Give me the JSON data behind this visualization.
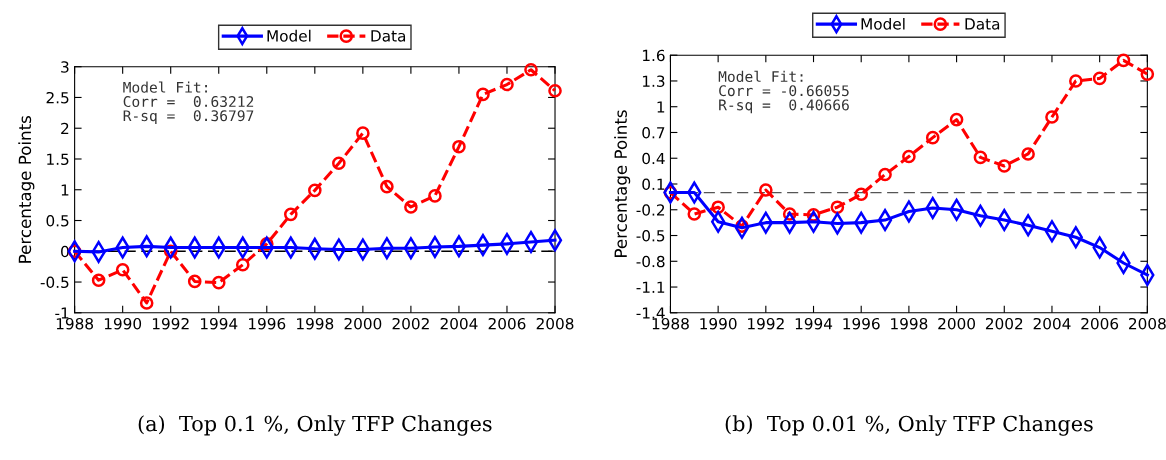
{
  "chart_data": [
    {
      "type": "line",
      "title": "(a)  Top 0.1 %, Only TFP Changes",
      "ylabel": "Percentage Points",
      "annotations": [
        "Model Fit:",
        "Corr =  0.63212",
        "R-sq =  0.36797"
      ],
      "x": [
        1988,
        1989,
        1990,
        1991,
        1992,
        1993,
        1994,
        1995,
        1996,
        1997,
        1998,
        1999,
        2000,
        2001,
        2002,
        2003,
        2004,
        2005,
        2006,
        2007,
        2008
      ],
      "series": [
        {
          "name": "Model",
          "color": "#0000ff",
          "marker": "diamond",
          "line_style": "solid",
          "values": [
            0,
            -0.01,
            0.06,
            0.08,
            0.06,
            0.06,
            0.06,
            0.06,
            0.06,
            0.06,
            0.04,
            0.03,
            0.03,
            0.05,
            0.05,
            0.07,
            0.08,
            0.1,
            0.12,
            0.15,
            0.18
          ]
        },
        {
          "name": "Data",
          "color": "#ff0000",
          "marker": "circle",
          "line_style": "dashed",
          "values": [
            0,
            -0.47,
            -0.3,
            -0.84,
            0,
            -0.49,
            -0.51,
            -0.22,
            0.12,
            0.6,
            0.99,
            1.43,
            1.92,
            1.05,
            0.72,
            0.9,
            1.7,
            2.55,
            2.71,
            2.95,
            2.61
          ]
        }
      ],
      "xlim": [
        1988,
        2008
      ],
      "ylim": [
        -1,
        3
      ],
      "xticks": [
        1988,
        1990,
        1992,
        1994,
        1996,
        1998,
        2000,
        2002,
        2004,
        2006,
        2008
      ],
      "yticks": [
        -1,
        -0.5,
        0,
        0.5,
        1,
        1.5,
        2,
        2.5,
        3
      ],
      "ref_lines": [
        {
          "axis": "y",
          "value": 0,
          "color": "#000000",
          "line_style": "dashed"
        }
      ],
      "grid": false,
      "legend": "top"
    },
    {
      "type": "line",
      "title": "(b)  Top 0.01 %, Only TFP Changes",
      "ylabel": "Percentage Points",
      "annotations": [
        "Model Fit:",
        "Corr = -0.66055",
        "R-sq =  0.40666"
      ],
      "x": [
        1988,
        1989,
        1990,
        1991,
        1992,
        1993,
        1994,
        1995,
        1996,
        1997,
        1998,
        1999,
        2000,
        2001,
        2002,
        2003,
        2004,
        2005,
        2006,
        2007,
        2008
      ],
      "series": [
        {
          "name": "Model",
          "color": "#0000ff",
          "marker": "diamond",
          "line_style": "solid",
          "values": [
            0,
            0,
            -0.34,
            -0.41,
            -0.35,
            -0.35,
            -0.34,
            -0.36,
            -0.35,
            -0.32,
            -0.22,
            -0.18,
            -0.2,
            -0.27,
            -0.32,
            -0.38,
            -0.45,
            -0.52,
            -0.64,
            -0.82,
            -0.96
          ]
        },
        {
          "name": "Data",
          "color": "#ff0000",
          "marker": "circle",
          "line_style": "dashed",
          "values": [
            0,
            -0.25,
            -0.17,
            -0.39,
            0.03,
            -0.25,
            -0.26,
            -0.17,
            -0.02,
            0.21,
            0.42,
            0.64,
            0.85,
            0.41,
            0.31,
            0.45,
            0.88,
            1.3,
            1.33,
            1.54,
            1.38
          ]
        }
      ],
      "xlim": [
        1988,
        2008
      ],
      "ylim": [
        -1.4,
        1.6
      ],
      "xticks": [
        1988,
        1990,
        1992,
        1994,
        1996,
        1998,
        2000,
        2002,
        2004,
        2006,
        2008
      ],
      "yticks": [
        -1.4,
        -1.1,
        -0.8,
        -0.5,
        -0.2,
        0.1,
        0.4,
        0.7,
        1,
        1.3,
        1.6
      ],
      "ref_lines": [
        {
          "axis": "y",
          "value": 0,
          "color": "#555555",
          "line_style": "dashed"
        }
      ],
      "grid": false,
      "legend": "top"
    }
  ]
}
